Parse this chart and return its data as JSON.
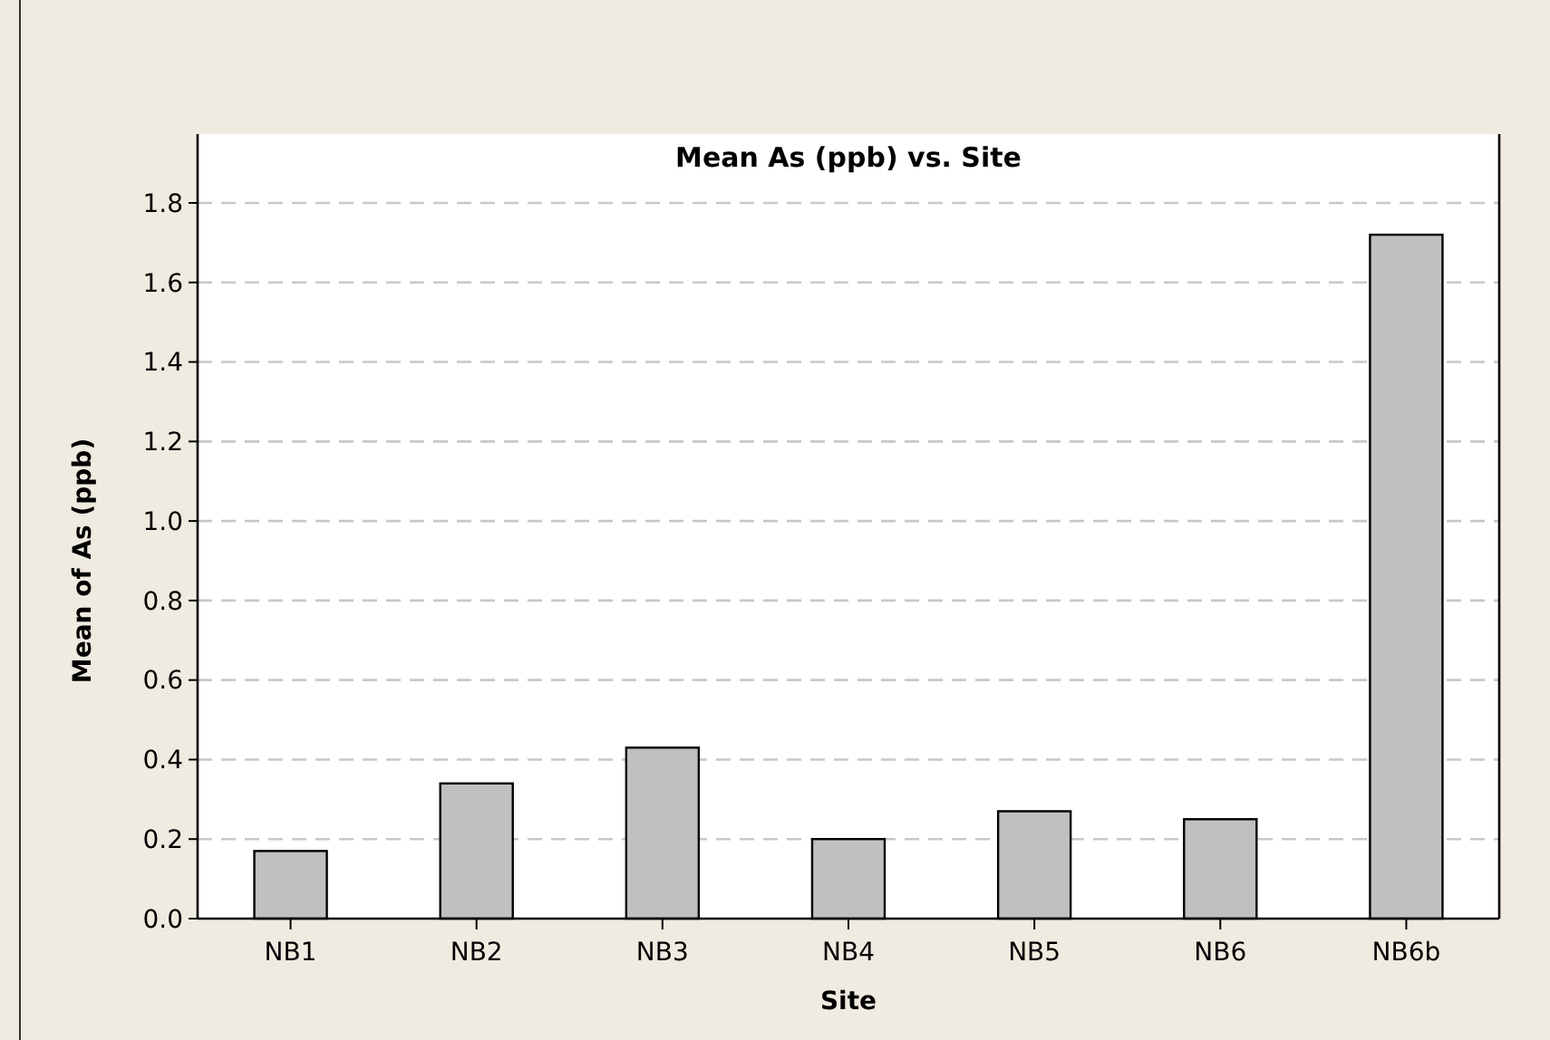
{
  "chart_data": {
    "type": "bar",
    "title": "Mean As (ppb) vs. Site",
    "xlabel": "Site",
    "ylabel": "Mean of As (ppb)",
    "categories": [
      "NB1",
      "NB2",
      "NB3",
      "NB4",
      "NB5",
      "NB6",
      "NB6b"
    ],
    "values": [
      0.17,
      0.34,
      0.43,
      0.2,
      0.27,
      0.25,
      1.72
    ],
    "color": "#c0c0c0",
    "ylim": [
      0,
      1.8
    ],
    "yticks": [
      {
        "value": 0,
        "label": "0.0"
      },
      {
        "value": 0.2,
        "label": "0.2"
      },
      {
        "value": 0.4,
        "label": "0.4"
      },
      {
        "value": 0.6,
        "label": "0.6"
      },
      {
        "value": 0.8,
        "label": "0.8"
      },
      {
        "value": 1,
        "label": "1.0"
      },
      {
        "value": 1.2,
        "label": "1.2"
      },
      {
        "value": 1.4,
        "label": "1.4"
      },
      {
        "value": 1.6,
        "label": "1.6"
      },
      {
        "value": 1.8,
        "label": "1.8"
      }
    ],
    "grid": "y"
  }
}
